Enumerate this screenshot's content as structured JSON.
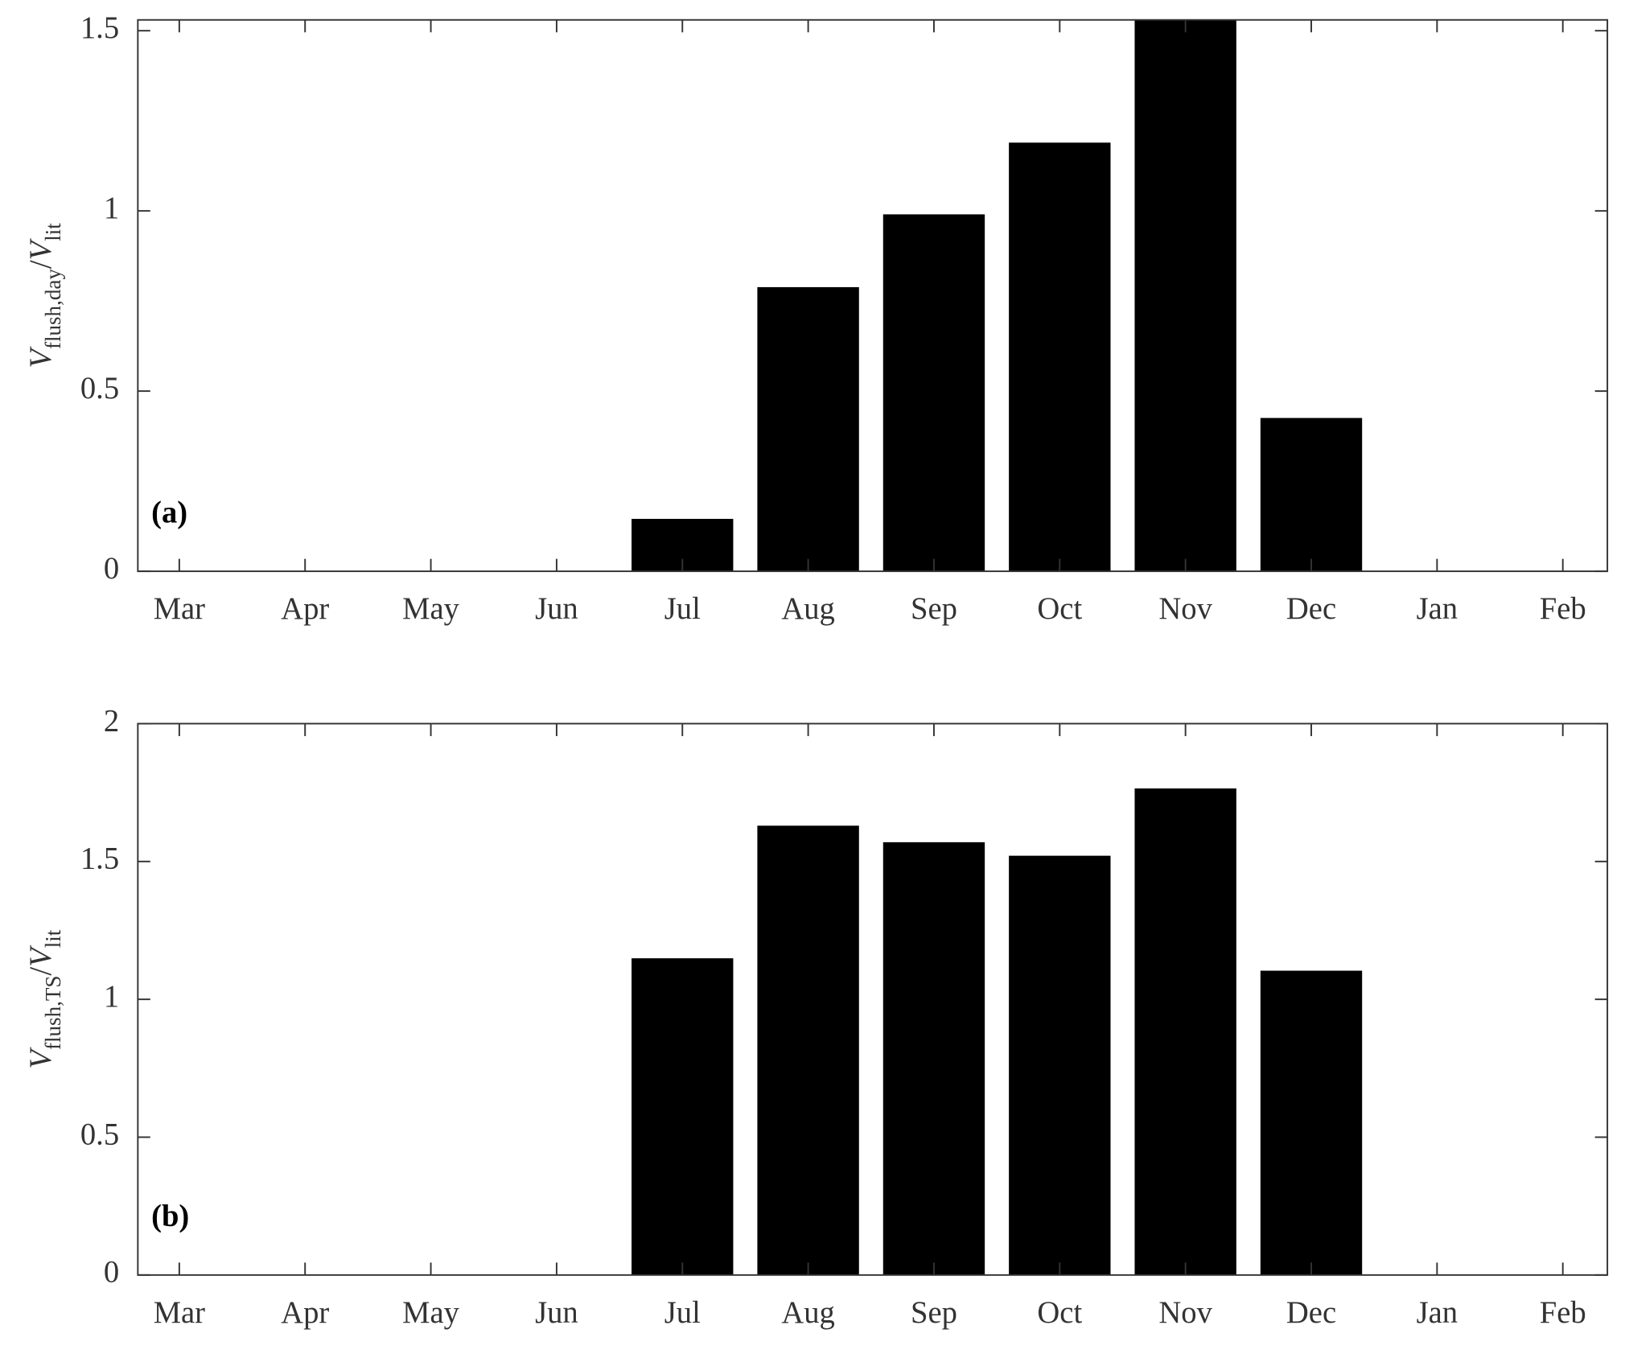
{
  "chart_data": [
    {
      "type": "bar",
      "annotation": "(a)",
      "ylabel": [
        {
          "text": "V",
          "style": "italic"
        },
        {
          "text": "flush,day",
          "style": "sub"
        },
        {
          "text": "/",
          "style": "normal"
        },
        {
          "text": "V",
          "style": "italic"
        },
        {
          "text": "lit",
          "style": "sub"
        }
      ],
      "categories": [
        "Mar",
        "Apr",
        "May",
        "Jun",
        "Jul",
        "Aug",
        "Sep",
        "Oct",
        "Nov",
        "Dec",
        "Jan",
        "Feb"
      ],
      "values": [
        0,
        0,
        0,
        0,
        0.144,
        0.787,
        0.989,
        1.188,
        1.53,
        0.424,
        0,
        0
      ],
      "color": "#000000",
      "ylim": [
        0,
        1.53
      ],
      "yticks": [
        0,
        0.5,
        1,
        1.5
      ]
    },
    {
      "type": "bar",
      "annotation": "(b)",
      "ylabel": [
        {
          "text": "V",
          "style": "italic"
        },
        {
          "text": "flush,TS",
          "style": "sub"
        },
        {
          "text": "/",
          "style": "normal"
        },
        {
          "text": "V",
          "style": "italic"
        },
        {
          "text": "lit",
          "style": "sub"
        }
      ],
      "categories": [
        "Mar",
        "Apr",
        "May",
        "Jun",
        "Jul",
        "Aug",
        "Sep",
        "Oct",
        "Nov",
        "Dec",
        "Jan",
        "Feb"
      ],
      "values": [
        0,
        0,
        0,
        0,
        1.147,
        1.628,
        1.568,
        1.519,
        1.763,
        1.102,
        0,
        0
      ],
      "color": "#000000",
      "ylim": [
        0,
        2
      ],
      "yticks": [
        0,
        0.5,
        1,
        1.5,
        2
      ]
    }
  ]
}
